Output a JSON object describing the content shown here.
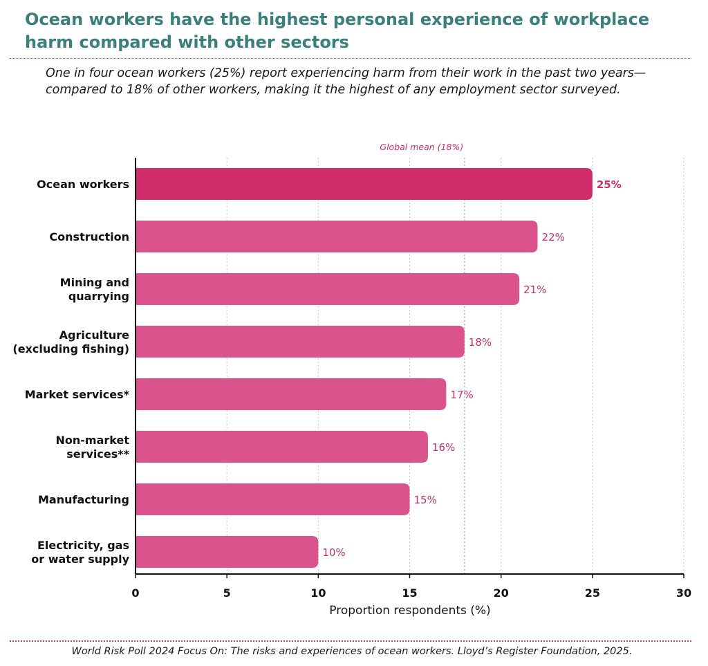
{
  "header": {
    "title": "Ocean workers have the highest personal experience of workplace harm compared with other sectors",
    "subtitle": "One in four ocean workers (25%) report experiencing harm from their work in the past two years—compared to 18% of other workers, making it the highest of any employment sector surveyed."
  },
  "footer": {
    "source": "World Risk Poll 2024 Focus On: The risks and experiences of ocean workers. Lloyd’s Register Foundation, 2025."
  },
  "colors": {
    "highlight_bar": "#d12c6a",
    "bar": "#db538d",
    "value_label": "#cc2f6b",
    "title": "#3a7f7c"
  },
  "chart_data": {
    "type": "bar",
    "orientation": "horizontal",
    "categories": [
      [
        "Ocean workers"
      ],
      [
        "Construction"
      ],
      [
        "Mining and",
        "quarrying"
      ],
      [
        "Agriculture",
        "(excluding fishing)"
      ],
      [
        "Market services*"
      ],
      [
        "Non-market",
        "services**"
      ],
      [
        "Manufacturing"
      ],
      [
        "Electricity, gas",
        "or water supply"
      ]
    ],
    "values": [
      25,
      22,
      21,
      18,
      17,
      16,
      15,
      10
    ],
    "value_labels": [
      "25%",
      "22%",
      "21%",
      "18%",
      "17%",
      "16%",
      "15%",
      "10%"
    ],
    "highlight_index": 0,
    "xlabel": "Proportion respondents (%)",
    "ylabel": "",
    "xlim": [
      0,
      30
    ],
    "xticks": [
      0,
      5,
      10,
      15,
      20,
      25,
      30
    ],
    "grid": "vertical-dotted",
    "reference_line": {
      "value": 18,
      "label": "Global mean (18%)"
    }
  }
}
